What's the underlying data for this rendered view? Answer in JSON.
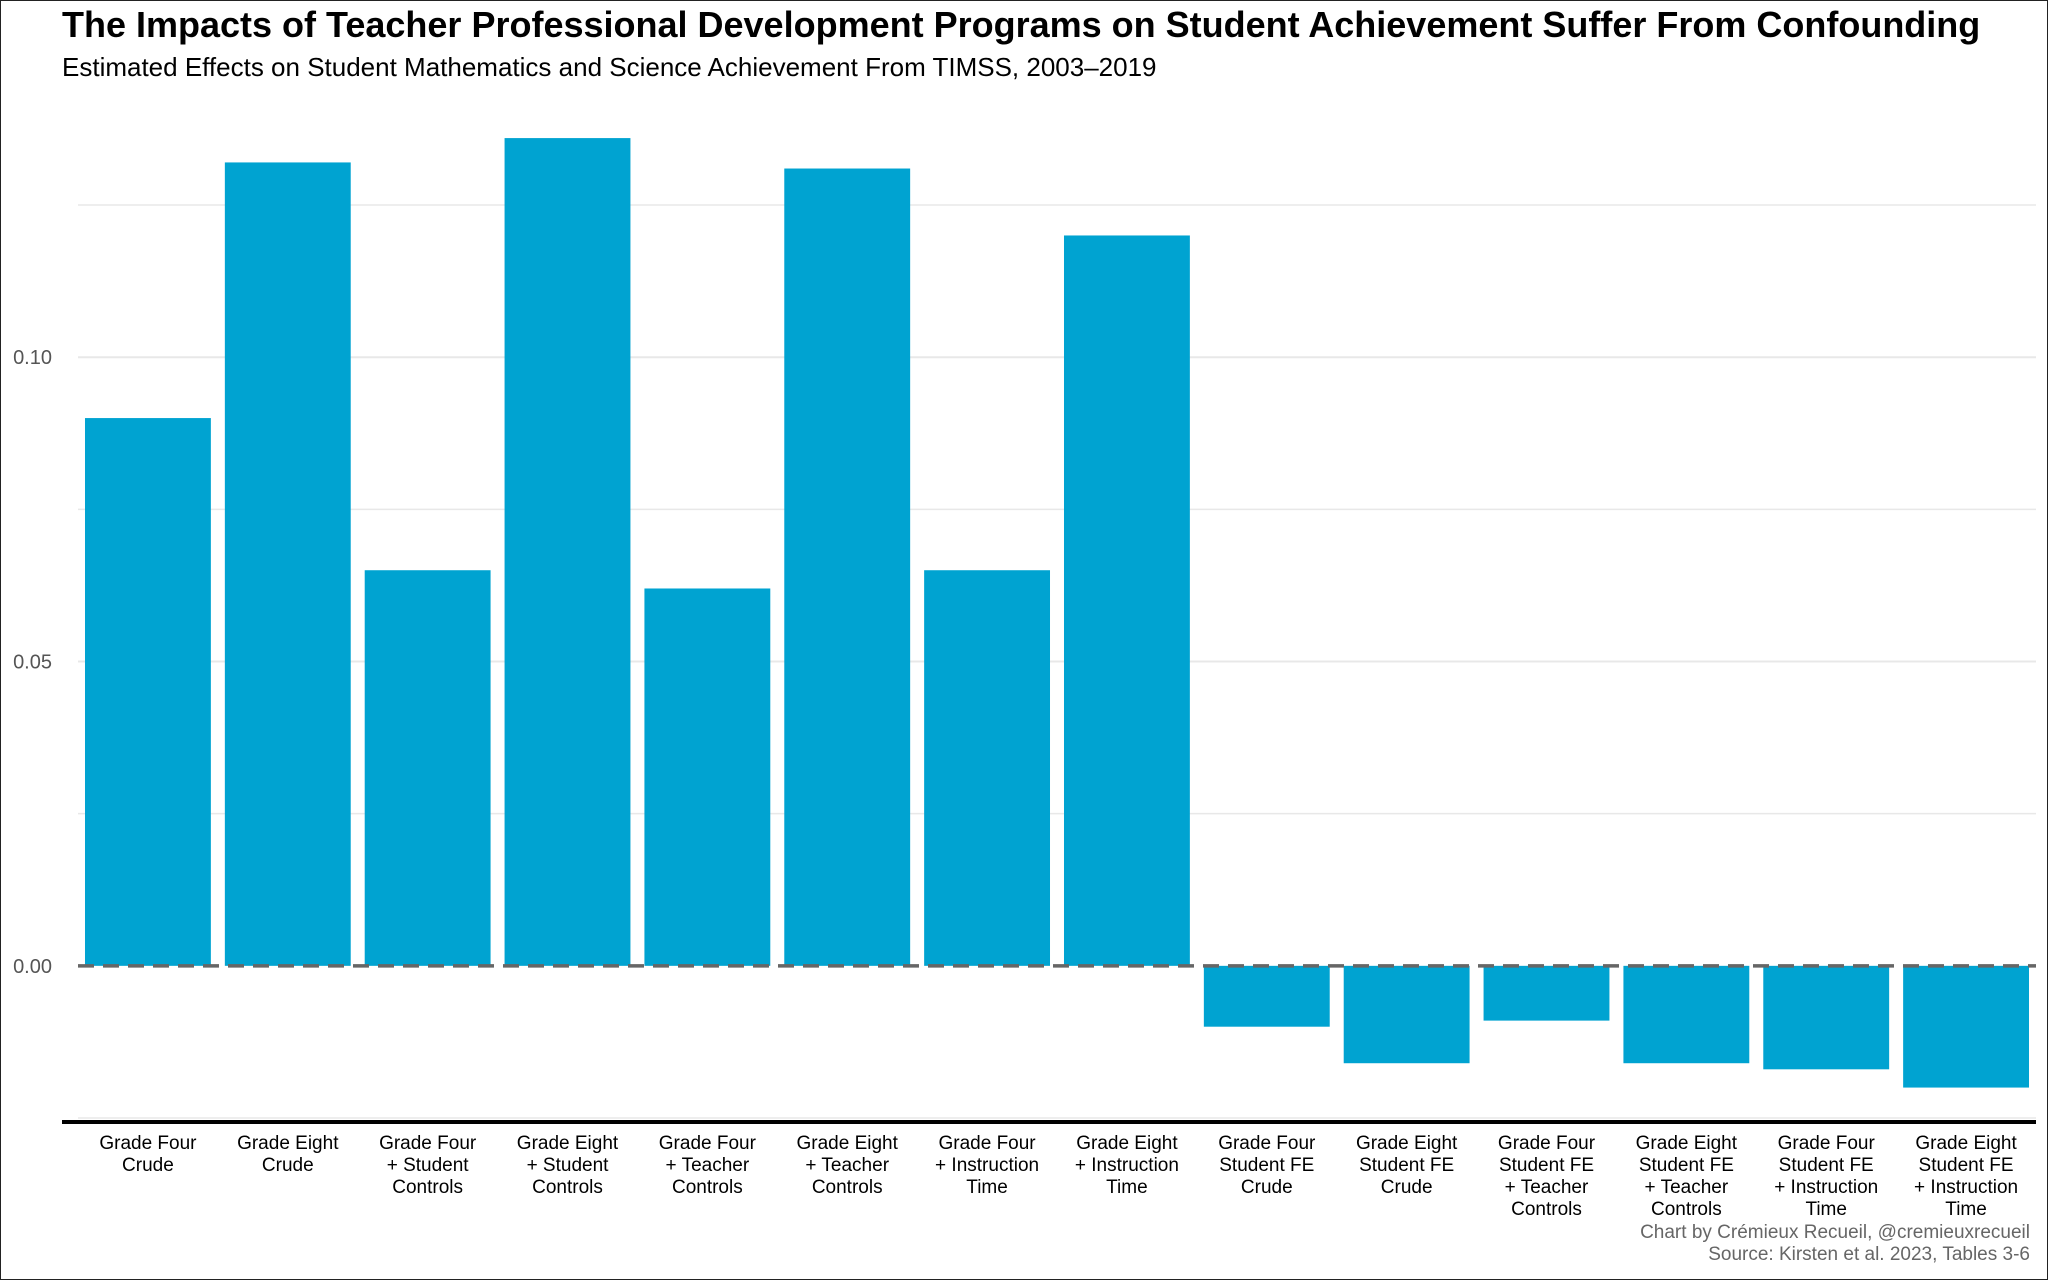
{
  "title": "The Impacts of Teacher Professional Development Programs on Student Achievement Suffer From Confounding",
  "subtitle": "Estimated Effects on Student Mathematics and Science Achievement From TIMSS, 2003–2019",
  "caption": {
    "line1": "Chart by Crémieux Recueil, @cremieuxrecueil",
    "line2": "Source: Kirsten et al. 2023, Tables 3-6"
  },
  "colors": {
    "bar": "#00A3D1",
    "grid": "#E8E8E8",
    "zero_line": "#666666",
    "axis": "#000000"
  },
  "chart_data": {
    "type": "bar",
    "categories": [
      [
        "Grade Four",
        "Crude"
      ],
      [
        "Grade Eight",
        "Crude"
      ],
      [
        "Grade Four",
        "+ Student",
        "Controls"
      ],
      [
        "Grade Eight",
        "+ Student",
        "Controls"
      ],
      [
        "Grade Four",
        "+ Teacher",
        "Controls"
      ],
      [
        "Grade Eight",
        "+ Teacher",
        "Controls"
      ],
      [
        "Grade Four",
        "+ Instruction",
        "Time"
      ],
      [
        "Grade Eight",
        "+ Instruction",
        "Time"
      ],
      [
        "Grade Four",
        "Student FE",
        "Crude"
      ],
      [
        "Grade Eight",
        "Student FE",
        "Crude"
      ],
      [
        "Grade Four",
        "Student FE",
        "+ Teacher",
        "Controls"
      ],
      [
        "Grade Eight",
        "Student FE",
        "+ Teacher",
        "Controls"
      ],
      [
        "Grade Four",
        "Student FE",
        "+ Instruction",
        "Time"
      ],
      [
        "Grade Eight",
        "Student FE",
        "+ Instruction",
        "Time"
      ]
    ],
    "values": [
      0.09,
      0.132,
      0.065,
      0.136,
      0.062,
      0.131,
      0.065,
      0.12,
      -0.01,
      -0.016,
      -0.009,
      -0.016,
      -0.017,
      -0.02
    ],
    "ylim": [
      -0.025,
      0.137
    ],
    "yticks": [
      0.0,
      0.05,
      0.1
    ],
    "ytick_labels": [
      "0.00",
      "0.05",
      "0.10"
    ],
    "minor_gridlines": [
      -0.025,
      0.025,
      0.075,
      0.125
    ],
    "reference_line": 0,
    "grid": true,
    "xlabel": "",
    "ylabel": ""
  }
}
